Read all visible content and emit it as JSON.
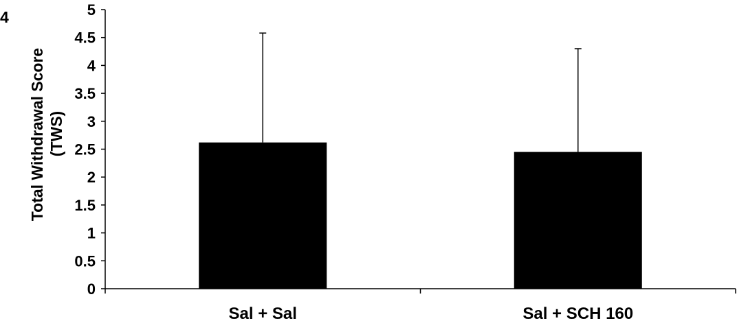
{
  "chart_data": {
    "type": "bar",
    "categories": [
      "Sal + Sal",
      "Sal + SCH 160"
    ],
    "values": [
      2.62,
      2.45
    ],
    "error_upper": [
      4.58,
      4.3
    ],
    "ylabel_line1": "Total Withdrawal Score",
    "ylabel_line2": "(TWS)",
    "ylabel_fragment_left": "4",
    "yticks": [
      "0",
      "0.5",
      "1",
      "1.5",
      "2",
      "2.5",
      "3",
      "3.5",
      "4",
      "4.5",
      "5"
    ],
    "ylim": [
      0,
      5
    ],
    "grid": false,
    "bar_color": "#000000",
    "legend": "none"
  }
}
